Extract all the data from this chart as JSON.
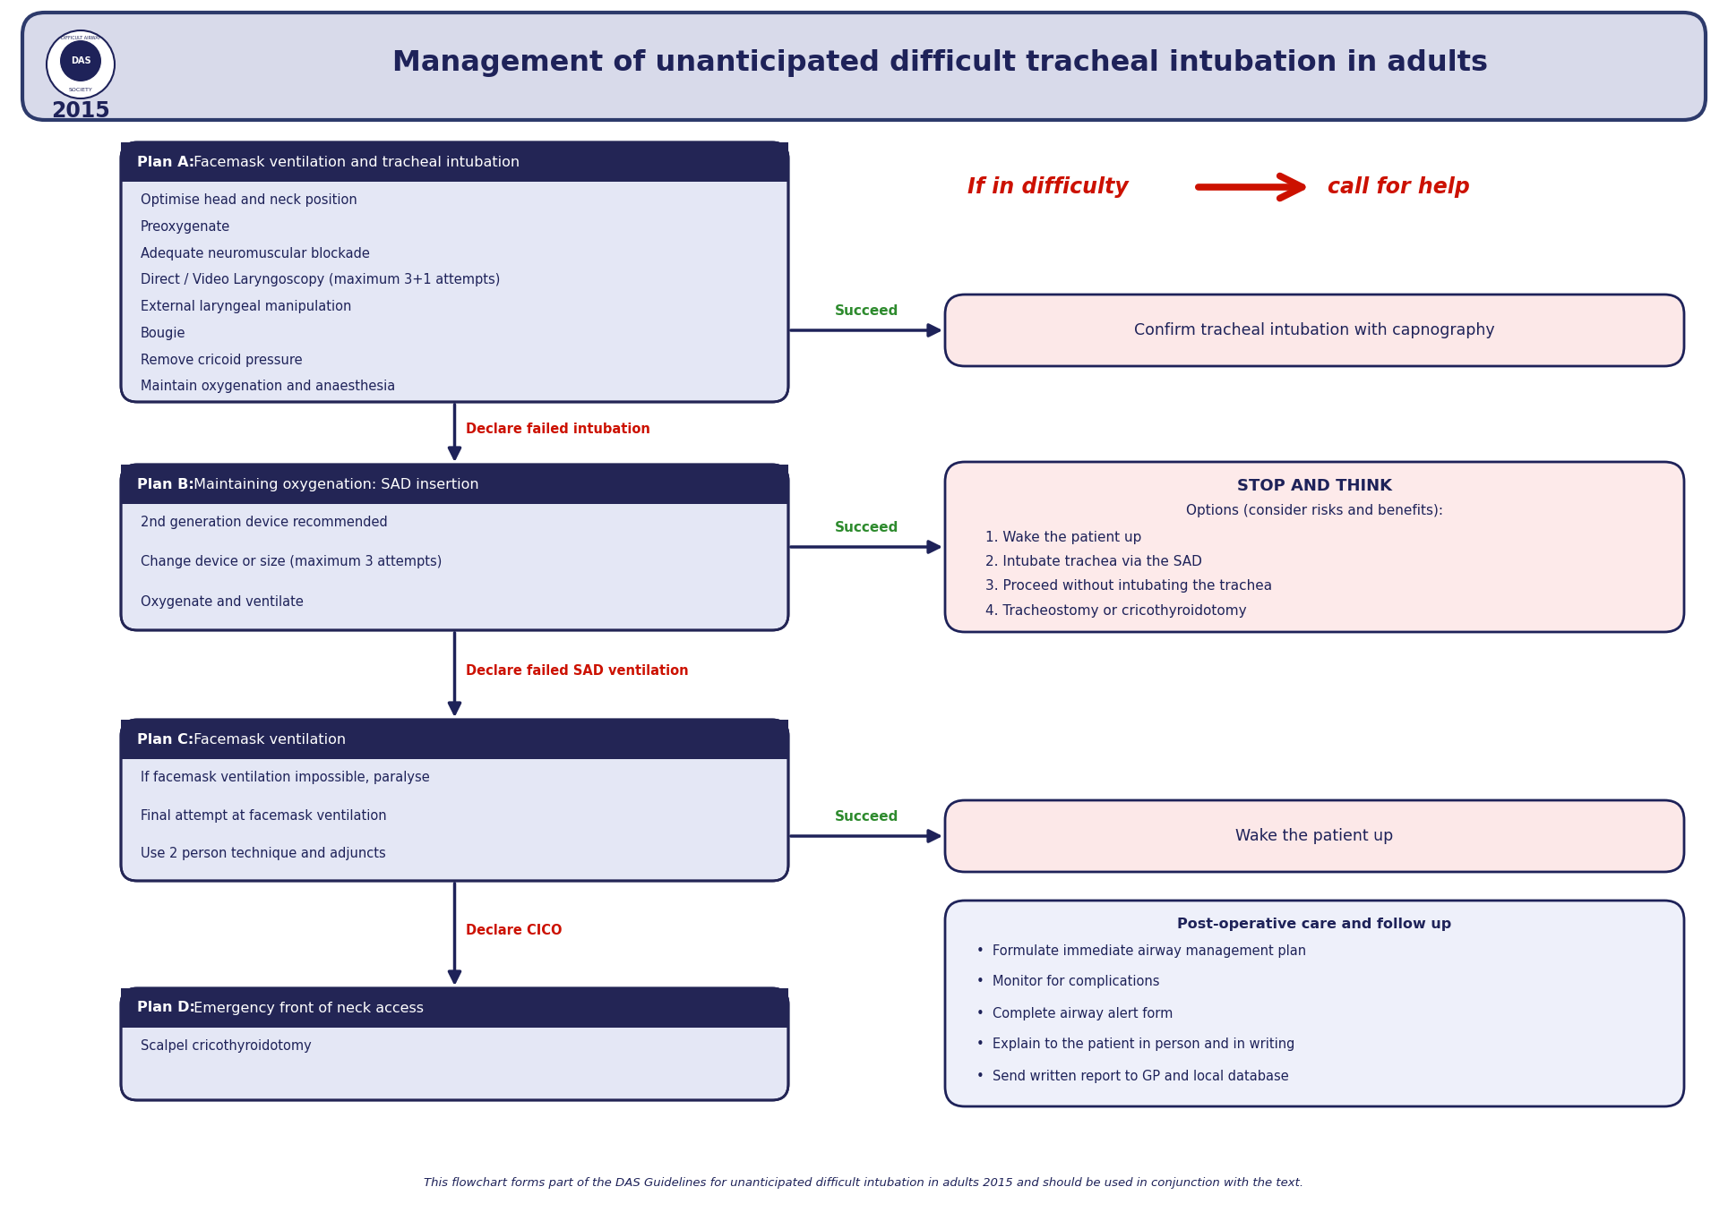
{
  "title": "Management of unanticipated difficult tracheal intubation in adults",
  "year": "2015",
  "background_color": "#ffffff",
  "header_bg": "#d8daea",
  "header_border": "#2d3a6b",
  "plan_a_title_bold": "Plan A:",
  "plan_a_title_rest": " Facemask ventilation and tracheal intubation",
  "plan_a_items": [
    "Optimise head and neck position",
    "Preoxygenate",
    "Adequate neuromuscular blockade",
    "Direct / Video Laryngoscopy (maximum 3+1 attempts)",
    "External laryngeal manipulation",
    "Bougie",
    "Remove cricoid pressure",
    "Maintain oxygenation and anaesthesia"
  ],
  "plan_b_title_bold": "Plan B:",
  "plan_b_title_rest": " Maintaining oxygenation: SAD insertion",
  "plan_b_items": [
    "2nd generation device recommended",
    "Change device or size (maximum 3 attempts)",
    "Oxygenate and ventilate"
  ],
  "plan_c_title_bold": "Plan C:",
  "plan_c_title_rest": " Facemask ventilation",
  "plan_c_items": [
    "If facemask ventilation impossible, paralyse",
    "Final attempt at facemask ventilation",
    "Use 2 person technique and adjuncts"
  ],
  "plan_d_title_bold": "Plan D:",
  "plan_d_title_rest": " Emergency front of neck access",
  "plan_d_items": [
    "Scalpel cricothyroidotomy"
  ],
  "right_a_text": "Confirm tracheal intubation with capnography",
  "stop_think_title": "STOP AND THINK",
  "stop_think_sub": "Options (consider risks and benefits):",
  "stop_think_items": [
    "1. Wake the patient up",
    "2. Intubate trachea via the SAD",
    "3. Proceed without intubating the trachea",
    "4. Tracheostomy or cricothyroidotomy"
  ],
  "right_c_text": "Wake the patient up",
  "postop_title": "Post-operative care and follow up",
  "postop_items": [
    "Formulate immediate airway management plan",
    "Monitor for complications",
    "Complete airway alert form",
    "Explain to the patient in person and in writing",
    "Send written report to GP and local database"
  ],
  "footer": "This flowchart forms part of the DAS Guidelines for unanticipated difficult intubation in adults 2015 and should be used in conjunction with the text.",
  "if_in_difficulty": "If in difficulty",
  "call_for_help": "call for help",
  "label_succeed_a": "Succeed",
  "label_succeed_b": "Succeed",
  "label_succeed_c": "Succeed",
  "label_declare_a": "Declare failed intubation",
  "label_declare_b": "Declare failed SAD ventilation",
  "label_declare_c": "Declare CICO",
  "dark_navy": "#1e2259",
  "header_dark": "#232555",
  "body_blue": "#dce0f0",
  "body_lavender": "#e4e7f5",
  "pink_box_bg": "#fce8e8",
  "pink_box_stop": "#fdeaea",
  "post_box_bg": "#eef0fa",
  "green_succeed": "#2e8b2e",
  "red_arrow": "#cc1100",
  "red_declare": "#cc1100",
  "text_dark_blue": "#1e2259",
  "white": "#ffffff"
}
